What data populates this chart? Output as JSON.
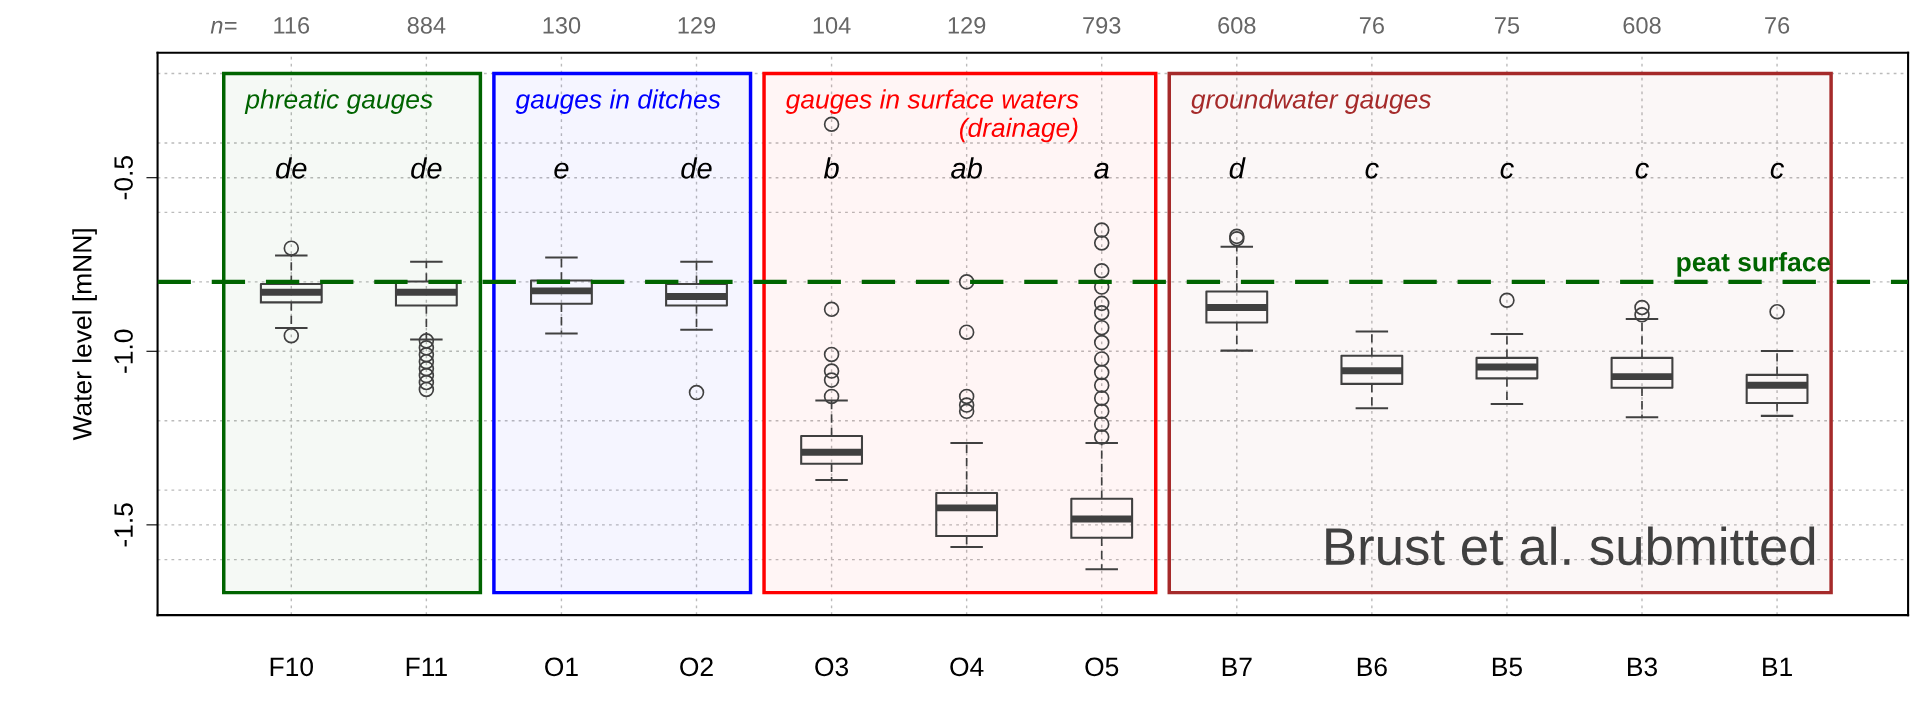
{
  "chart_data": {
    "type": "box",
    "ylabel": "Water level [mNN]",
    "categories": [
      "F10",
      "F11",
      "O1",
      "O2",
      "O3",
      "O4",
      "O5",
      "B7",
      "B6",
      "B5",
      "B3",
      "B1"
    ],
    "ylim": [
      -1.76,
      -0.14
    ],
    "yticks": [
      {
        "value": -0.2,
        "label": null
      },
      {
        "value": -0.4,
        "label": null
      },
      {
        "value": -0.5,
        "label": "-0.5"
      },
      {
        "value": -0.6,
        "label": null
      },
      {
        "value": -0.8,
        "label": null
      },
      {
        "value": -1.0,
        "label": "-1.0"
      },
      {
        "value": -1.2,
        "label": null
      },
      {
        "value": -1.4,
        "label": null
      },
      {
        "value": -1.5,
        "label": "-1.5"
      },
      {
        "value": -1.6,
        "label": null
      }
    ],
    "grid": true,
    "series": [
      {
        "color": "#404040",
        "boxes": [
          {
            "low": -0.933,
            "q1": -0.859,
            "median": -0.83,
            "q3": -0.806,
            "high": -0.724,
            "outliers": [
              -0.703,
              -0.955
            ]
          },
          {
            "low": -0.966,
            "q1": -0.868,
            "median": -0.83,
            "q3": -0.799,
            "high": -0.742,
            "outliers": [
              -0.97,
              -0.99,
              -1.01,
              -1.03,
              -1.05,
              -1.07,
              -1.09,
              -1.11
            ]
          },
          {
            "low": -0.949,
            "q1": -0.863,
            "median": -0.826,
            "q3": -0.796,
            "high": -0.73
          },
          {
            "low": -0.938,
            "q1": -0.868,
            "median": -0.842,
            "q3": -0.806,
            "high": -0.742,
            "outliers": [
              -1.119
            ]
          },
          {
            "low": -1.371,
            "q1": -1.324,
            "median": -1.291,
            "q3": -1.244,
            "high": -1.142,
            "outliers": [
              -0.346,
              -0.879,
              -1.009,
              -1.057,
              -1.083,
              -1.13
            ]
          },
          {
            "low": -1.564,
            "q1": -1.532,
            "median": -1.451,
            "q3": -1.408,
            "high": -1.264,
            "outliers": [
              -0.8,
              -0.945,
              -1.13,
              -1.155,
              -1.173
            ]
          },
          {
            "low": -1.628,
            "q1": -1.537,
            "median": -1.483,
            "q3": -1.425,
            "high": -1.264,
            "outliers": [
              -0.651,
              -0.688,
              -0.768,
              -0.815,
              -0.862,
              -0.889,
              -0.932,
              -0.975,
              -1.022,
              -1.061,
              -1.098,
              -1.135,
              -1.173,
              -1.21,
              -1.247
            ]
          },
          {
            "low": -0.998,
            "q1": -0.917,
            "median": -0.874,
            "q3": -0.828,
            "high": -0.699,
            "outliers": [
              -0.669,
              -0.676
            ]
          },
          {
            "low": -1.164,
            "q1": -1.094,
            "median": -1.056,
            "q3": -1.013,
            "high": -0.943
          },
          {
            "low": -1.152,
            "q1": -1.078,
            "median": -1.045,
            "q3": -1.019,
            "high": -0.95,
            "outliers": [
              -0.853
            ]
          },
          {
            "low": -1.19,
            "q1": -1.105,
            "median": -1.073,
            "q3": -1.019,
            "high": -0.907,
            "outliers": [
              -0.874,
              -0.895
            ]
          },
          {
            "low": -1.186,
            "q1": -1.149,
            "median": -1.098,
            "q3": -1.068,
            "high": -0.999,
            "outliers": [
              -0.886
            ]
          }
        ]
      }
    ],
    "ref_lines": [
      {
        "axis": "y",
        "value": -0.8,
        "label": "peat surface",
        "color": "#006400",
        "line_style": "dashed"
      }
    ],
    "bands": [
      {
        "axis": "x",
        "from": "F10",
        "to": "F11",
        "label": "phreatic gauges",
        "color": "#006400"
      },
      {
        "axis": "x",
        "from": "O1",
        "to": "O2",
        "label": "gauges in ditches",
        "color": "#0000ff"
      },
      {
        "axis": "x",
        "from": "O3",
        "to": "O5",
        "label": "gauges in surface waters\n(drainage)",
        "color": "#ff0000"
      },
      {
        "axis": "x",
        "from": "B7",
        "to": "B1",
        "label": "groundwater gauges",
        "color": "#a52a2a"
      }
    ],
    "annotations": [
      "n=",
      "Brust et al. submitted",
      "116",
      "884",
      "130",
      "129",
      "104",
      "129",
      "793",
      "608",
      "76",
      "75",
      "608",
      "76",
      "de",
      "de",
      "e",
      "de",
      "b",
      "ab",
      "a",
      "d",
      "c",
      "c",
      "c",
      "c"
    ]
  }
}
